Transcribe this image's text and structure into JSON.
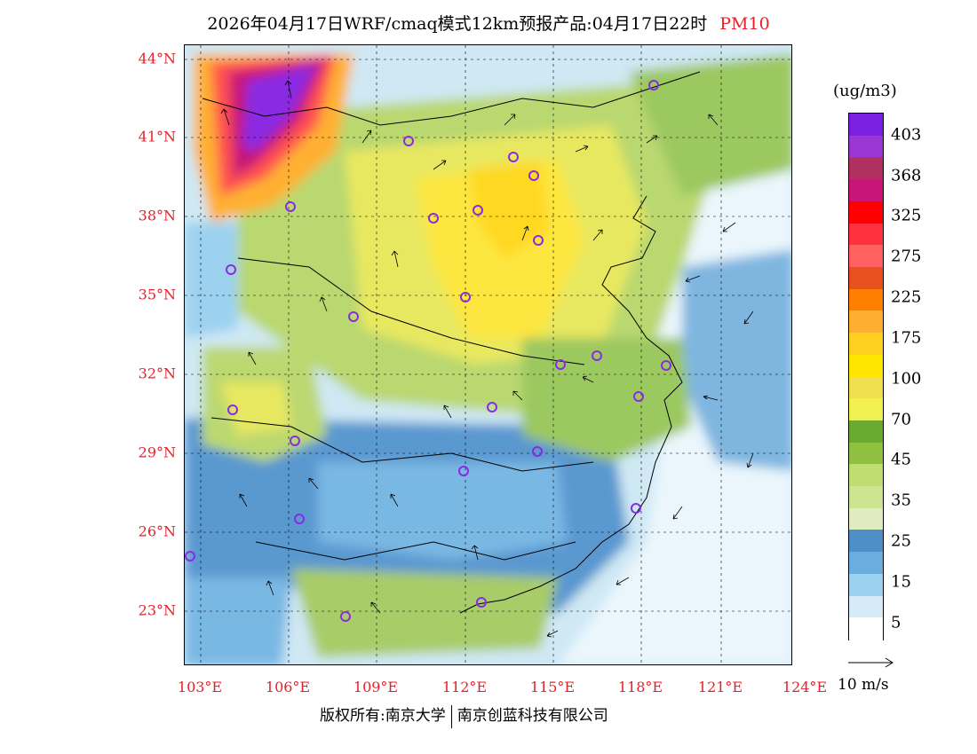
{
  "title": {
    "main": "2026年04月17日WRF/cmaq模式12km预报产品:04月17日22时",
    "variable": "PM10"
  },
  "lat_labels": [
    "44°N",
    "41°N",
    "38°N",
    "35°N",
    "32°N",
    "29°N",
    "26°N",
    "23°N"
  ],
  "lon_labels": [
    "103°E",
    "106°E",
    "109°E",
    "112°E",
    "115°E",
    "118°E",
    "121°E",
    "124°E"
  ],
  "colorbar": {
    "unit": "(ug/m3)",
    "labels": [
      "403",
      "368",
      "325",
      "275",
      "225",
      "175",
      "100",
      "70",
      "45",
      "35",
      "25",
      "15",
      "5"
    ],
    "colors": [
      "#7b1fe0",
      "#9a36d1",
      "#b03060",
      "#c81578",
      "#ff0000",
      "#ff3040",
      "#ff6060",
      "#e85020",
      "#ff8000",
      "#ffae30",
      "#ffd020",
      "#ffe600",
      "#f0e050",
      "#f0f050",
      "#6aaa30",
      "#90c040",
      "#bfdd70",
      "#cde490",
      "#e0ecc0",
      "#4f8fc8",
      "#6aaee0",
      "#9cd2f0",
      "#d5ecf8",
      "#ffffff"
    ]
  },
  "wind_key": "10 m/s",
  "footer": {
    "left": "版权所有:南京大学",
    "right": "南京创蓝科技有限公司"
  },
  "city_markers": [
    "city-1",
    "city-2",
    "city-3",
    "city-4",
    "city-5",
    "city-6",
    "city-7",
    "city-8",
    "city-9",
    "city-10",
    "city-11",
    "city-12",
    "city-13",
    "city-14",
    "city-15",
    "city-16",
    "city-17",
    "city-18",
    "city-19",
    "city-20",
    "city-21",
    "city-22",
    "city-23"
  ]
}
